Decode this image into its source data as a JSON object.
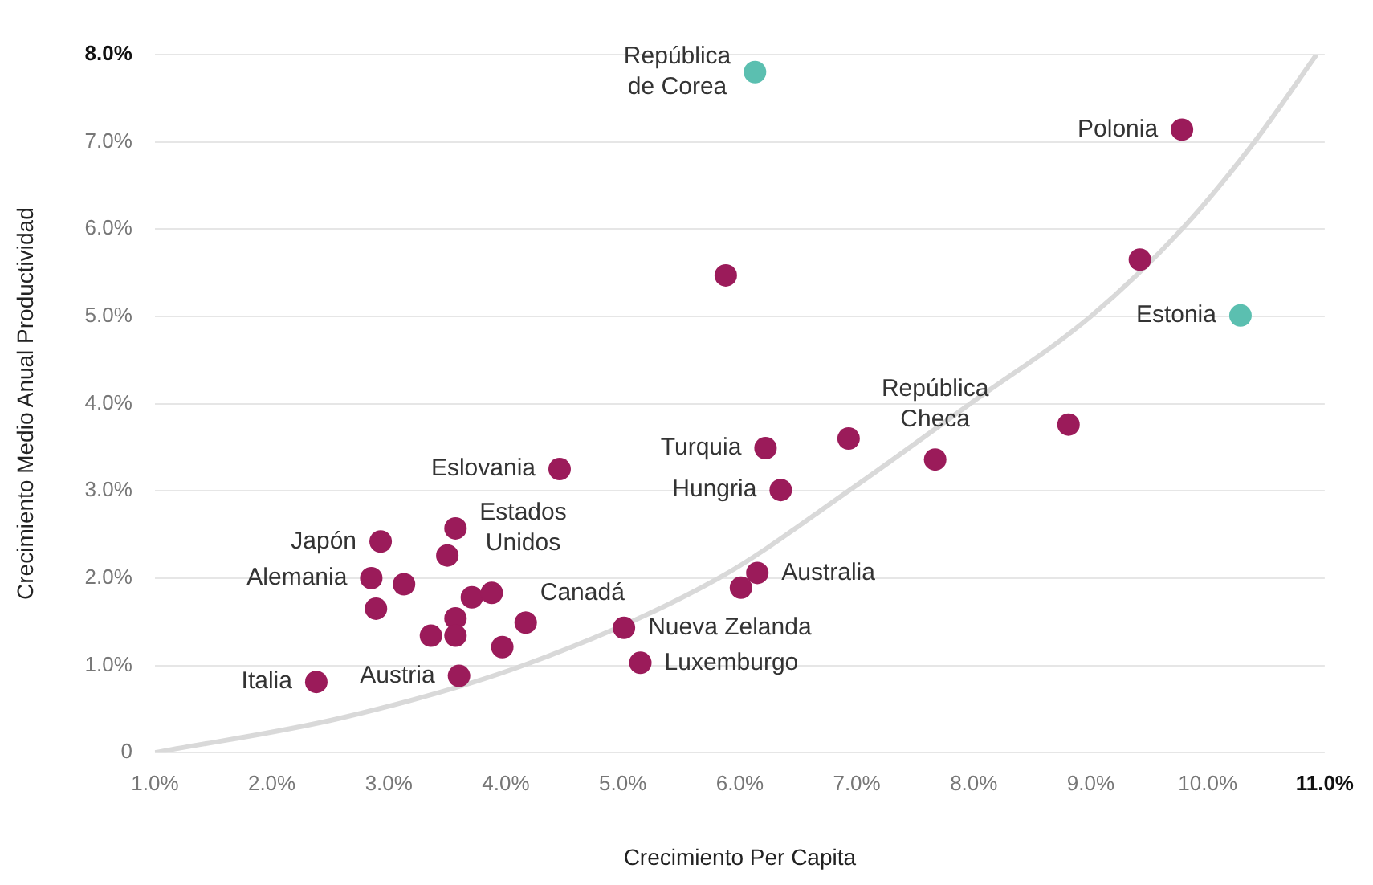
{
  "chart_data": {
    "type": "scatter",
    "xlabel": "Crecimiento Per Capita",
    "ylabel": "Crecimiento Medio Anual Productividad",
    "xlim": [
      1,
      11
    ],
    "xticks": [
      {
        "value": 1,
        "label": "1.0%"
      },
      {
        "value": 2,
        "label": "2.0%"
      },
      {
        "value": 3,
        "label": "3.0%"
      },
      {
        "value": 4,
        "label": "4.0%"
      },
      {
        "value": 5,
        "label": "5.0%"
      },
      {
        "value": 6,
        "label": "6.0%"
      },
      {
        "value": 7,
        "label": "7.0%"
      },
      {
        "value": 8,
        "label": "8.0%"
      },
      {
        "value": 9,
        "label": "9.0%"
      },
      {
        "value": 10,
        "label": "10.0%"
      },
      {
        "value": 11,
        "label": "11.0%"
      }
    ],
    "ylim": [
      0,
      8
    ],
    "yticks": [
      0,
      {
        "value": 1,
        "label": "1.0%"
      },
      {
        "value": 2,
        "label": "2.0%"
      },
      {
        "value": 3,
        "label": "3.0%"
      },
      {
        "value": 4,
        "label": "4.0%"
      },
      {
        "value": 5,
        "label": "5.0%"
      },
      {
        "value": 6,
        "label": "6.0%"
      },
      {
        "value": 7,
        "label": "7.0%"
      },
      {
        "value": 8,
        "label": "8.0%"
      }
    ],
    "grid": "y",
    "legend": false,
    "marker": "circle",
    "series": [
      {
        "color": "#9b1b5a",
        "x": [
          9.78,
          5.88,
          9.42,
          8.81,
          4.46,
          6.22,
          6.93,
          7.67,
          6.35,
          2.93,
          3.57,
          3.5,
          2.85,
          3.13,
          2.89,
          3.71,
          3.88,
          6.15,
          6.01,
          4.17,
          5.01,
          3.57,
          3.36,
          3.57,
          3.97,
          3.6,
          5.15,
          2.38
        ],
        "values": [
          7.14,
          5.47,
          5.65,
          3.76,
          3.25,
          3.49,
          3.6,
          3.36,
          3.01,
          2.42,
          2.57,
          2.26,
          2.0,
          1.93,
          1.65,
          1.78,
          1.83,
          2.06,
          1.89,
          1.49,
          1.43,
          1.54,
          1.34,
          1.34,
          1.21,
          0.88,
          1.03,
          0.81
        ]
      },
      {
        "color": "#5bbfb0",
        "x": [
          6.13,
          10.28
        ],
        "values": [
          7.8,
          5.01
        ]
      },
      {
        "type": "line",
        "color": "#d9d9d9",
        "marker": "none",
        "x": [
          1,
          2.6,
          4.15,
          5.82,
          6.93,
          7.97,
          9.0,
          9.78,
          10.4,
          10.93
        ],
        "values": [
          0,
          0.4,
          1.0,
          2.0,
          3.0,
          4.0,
          5.0,
          6.0,
          7.0,
          8.0
        ]
      }
    ],
    "annotations": [
      {
        "text": "República\nde Corea",
        "x": 6.13,
        "y": 7.8
      },
      {
        "text": "Polonia",
        "x": 9.78,
        "y": 7.14
      },
      {
        "text": "Estonia",
        "x": 10.28,
        "y": 5.01
      },
      {
        "text": "Eslovania",
        "x": 4.46,
        "y": 3.25
      },
      {
        "text": "Turquia",
        "x": 6.22,
        "y": 3.49
      },
      {
        "text": "Hungria",
        "x": 6.35,
        "y": 3.01
      },
      {
        "text": "República\nCheca",
        "x": 7.67,
        "y": 3.36
      },
      {
        "text": "Japón",
        "x": 2.93,
        "y": 2.42
      },
      {
        "text": "Estados\nUnidos",
        "x": 3.57,
        "y": 2.57
      },
      {
        "text": "Alemania",
        "x": 2.85,
        "y": 2.0
      },
      {
        "text": "Canadá",
        "x": 4.17,
        "y": 1.49
      },
      {
        "text": "Australia",
        "x": 6.15,
        "y": 2.06
      },
      {
        "text": "Nueva Zelanda",
        "x": 5.01,
        "y": 1.43
      },
      {
        "text": "Luxemburgo",
        "x": 5.15,
        "y": 1.03
      },
      {
        "text": "Austria",
        "x": 3.6,
        "y": 0.88
      },
      {
        "text": "Italia",
        "x": 2.38,
        "y": 0.81
      }
    ]
  }
}
